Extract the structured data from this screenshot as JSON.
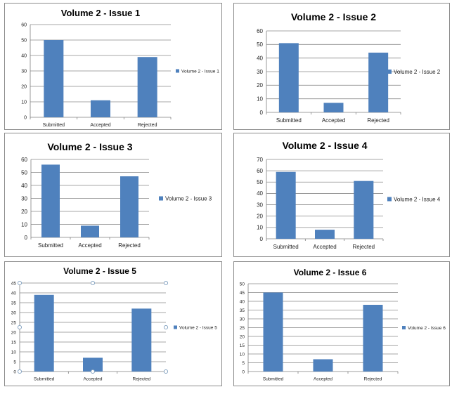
{
  "colors": {
    "bar": "#4f81bd",
    "grid": "#8a8a8a",
    "axis": "#7f7f7f",
    "handle": "#7f9fbf"
  },
  "chart_data": [
    {
      "type": "bar",
      "title": "Volume 2 - Issue 1",
      "categories": [
        "Submitted",
        "Accepted",
        "Rejected"
      ],
      "series": [
        {
          "name": "Volume 2 - Issue 1",
          "values": [
            50,
            11,
            39
          ]
        }
      ],
      "ylim": [
        0,
        60
      ],
      "ytick_step": 10,
      "xlabel": "",
      "ylabel": "",
      "grid": true,
      "legend": "right"
    },
    {
      "type": "bar",
      "title": "Volume 2 - Issue 2",
      "categories": [
        "Submitted",
        "Accepted",
        "Rejected"
      ],
      "series": [
        {
          "name": "Volume 2 - Issue 2",
          "values": [
            51,
            7,
            44
          ]
        }
      ],
      "ylim": [
        0,
        60
      ],
      "ytick_step": 10,
      "xlabel": "",
      "ylabel": "",
      "grid": true,
      "legend": "right"
    },
    {
      "type": "bar",
      "title": "Volume 2 - Issue 3",
      "categories": [
        "Submitted",
        "Accepted",
        "Rejected"
      ],
      "series": [
        {
          "name": "Volume 2 - Issue 3",
          "values": [
            56,
            9,
            47
          ]
        }
      ],
      "ylim": [
        0,
        60
      ],
      "ytick_step": 10,
      "xlabel": "",
      "ylabel": "",
      "grid": true,
      "legend": "right"
    },
    {
      "type": "bar",
      "title": "Volume 2 - Issue 4",
      "categories": [
        "Submitted",
        "Accepted",
        "Rejected"
      ],
      "series": [
        {
          "name": "Volume 2 - Issue 4",
          "values": [
            59,
            8,
            51
          ]
        }
      ],
      "ylim": [
        0,
        70
      ],
      "ytick_step": 10,
      "xlabel": "",
      "ylabel": "",
      "grid": true,
      "legend": "right"
    },
    {
      "type": "bar",
      "title": "Volume 2 - Issue 5",
      "categories": [
        "Submitted",
        "Accepted",
        "Rejected"
      ],
      "series": [
        {
          "name": "Volume 2 - Issue 5",
          "values": [
            39,
            7,
            32
          ]
        }
      ],
      "ylim": [
        0,
        45
      ],
      "ytick_step": 5,
      "xlabel": "",
      "ylabel": "",
      "grid": true,
      "legend": "right",
      "selected": true
    },
    {
      "type": "bar",
      "title": "Volume 2 - Issue 6",
      "categories": [
        "Submitted",
        "Accepted",
        "Rejected"
      ],
      "series": [
        {
          "name": "Volume 2 - Issue 6",
          "values": [
            45,
            7,
            38
          ]
        }
      ],
      "ylim": [
        0,
        50
      ],
      "ytick_step": 5,
      "xlabel": "",
      "ylabel": "",
      "grid": true,
      "legend": "right"
    }
  ]
}
